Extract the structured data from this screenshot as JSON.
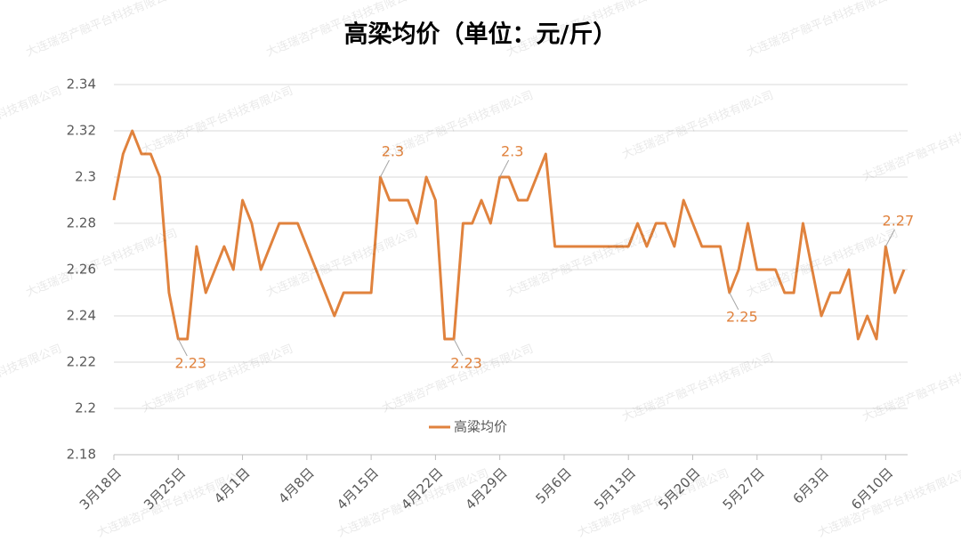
{
  "chart_data": {
    "type": "line",
    "title": "高梁均价（单位：元/斤）",
    "watermark": "大连瑞咨产融平台科技有限公司",
    "categories": [
      "3月18日",
      null,
      null,
      null,
      null,
      null,
      null,
      "3月25日",
      null,
      null,
      null,
      null,
      null,
      null,
      "4月1日",
      null,
      null,
      null,
      null,
      null,
      null,
      "4月8日",
      null,
      null,
      null,
      null,
      null,
      null,
      "4月15日",
      null,
      null,
      null,
      null,
      null,
      null,
      "4月22日",
      null,
      null,
      null,
      null,
      null,
      null,
      "4月29日",
      null,
      null,
      null,
      null,
      null,
      null,
      "5月6日",
      null,
      null,
      null,
      null,
      null,
      null,
      "5月13日",
      null,
      null,
      null,
      null,
      null,
      null,
      "5月20日",
      null,
      null,
      null,
      null,
      null,
      null,
      "5月27日",
      null,
      null,
      null,
      null,
      null,
      null,
      "6月3日",
      null,
      null,
      null,
      null,
      null,
      null,
      "6月10日",
      null,
      null
    ],
    "series": [
      {
        "name": "高粱均价",
        "color": "#e0823d",
        "values": [
          2.29,
          2.31,
          2.32,
          2.31,
          2.31,
          2.3,
          2.25,
          2.23,
          2.23,
          2.27,
          2.25,
          2.26,
          2.27,
          2.26,
          2.29,
          2.28,
          2.26,
          2.27,
          2.28,
          2.28,
          2.28,
          2.27,
          2.26,
          2.25,
          2.24,
          2.25,
          2.25,
          2.25,
          2.25,
          2.3,
          2.29,
          2.29,
          2.29,
          2.28,
          2.3,
          2.29,
          2.23,
          2.23,
          2.28,
          2.28,
          2.29,
          2.28,
          2.3,
          2.3,
          2.29,
          2.29,
          2.3,
          2.31,
          2.27,
          2.27,
          2.27,
          2.27,
          2.27,
          2.27,
          2.27,
          2.27,
          2.27,
          2.28,
          2.27,
          2.28,
          2.28,
          2.27,
          2.29,
          2.28,
          2.27,
          2.27,
          2.27,
          2.25,
          2.26,
          2.28,
          2.26,
          2.26,
          2.26,
          2.25,
          2.25,
          2.28,
          2.26,
          2.24,
          2.25,
          2.25,
          2.26,
          2.23,
          2.24,
          2.23,
          2.27,
          2.25,
          2.26
        ],
        "value_labels": [
          null,
          null,
          null,
          null,
          null,
          null,
          null,
          "2.23",
          null,
          null,
          null,
          null,
          null,
          null,
          null,
          null,
          null,
          null,
          null,
          null,
          null,
          null,
          null,
          null,
          null,
          null,
          null,
          null,
          null,
          "2.3",
          null,
          null,
          null,
          null,
          null,
          null,
          null,
          "2.23",
          null,
          null,
          null,
          null,
          "2.3",
          null,
          null,
          null,
          null,
          null,
          null,
          null,
          null,
          null,
          null,
          null,
          null,
          null,
          null,
          null,
          null,
          null,
          null,
          null,
          null,
          null,
          null,
          null,
          null,
          "2.25",
          null,
          null,
          null,
          null,
          null,
          null,
          null,
          null,
          null,
          null,
          null,
          null,
          null,
          null,
          null,
          null,
          "2.27",
          null,
          null
        ]
      }
    ],
    "ylim": [
      2.18,
      2.34
    ],
    "yticks": [
      2.18,
      2.2,
      2.22,
      2.24,
      2.26,
      2.28,
      2.3,
      2.32,
      2.34
    ],
    "grid": true,
    "legend": "bottom"
  }
}
